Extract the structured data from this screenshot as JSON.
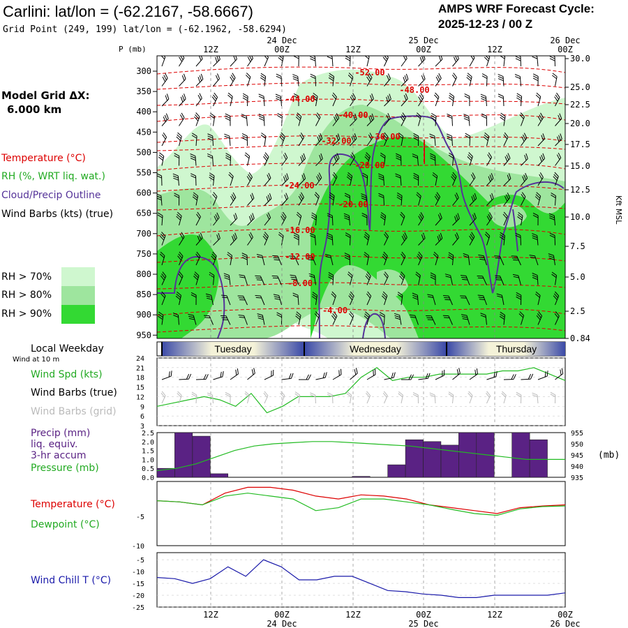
{
  "header": {
    "title": "Carlini:  lat/lon = (-62.2167, -58.6667)",
    "grid_point": "Grid Point (249, 199) lat/lon = (-62.1962, -58.6294)",
    "cycle_line1": "AMPS WRF Forecast Cycle:",
    "cycle_line2": "2025-12-23 / 00  Z"
  },
  "side_labels": {
    "model_grid_1": "Model Grid ΔX:",
    "model_grid_2": "6.000 km",
    "temperature": "Temperature (°C)",
    "rh": "RH (%, WRT liq. wat.)",
    "cloud": "Cloud/Precip Outline",
    "wind_barbs": "Wind Barbs (kts) (true)",
    "rh70": "RH > 70%",
    "rh80": "RH > 80%",
    "rh90": "RH > 90%",
    "local_weekday": "Local Weekday",
    "wind_10m": "Wind at 10 m",
    "wind_spd": "Wind Spd (kts)",
    "barbs_true": "Wind Barbs (true)",
    "barbs_grid": "Wind Barbs (grid)",
    "precip1": "Precip (mm)",
    "precip2": "liq. equiv.",
    "precip3": "3-hr accum",
    "pressure": "Pressure (mb)",
    "temp2": "Temperature (°C)",
    "dewpoint": "Dewpoint (°C)",
    "windchill": "Wind Chill T (°C)",
    "mb_unit": "(mb)",
    "kft": "Kft MSL",
    "p_mb": "P (mb)"
  },
  "colors": {
    "rh70": "#cff7cf",
    "rh80": "#9ee59e",
    "rh90": "#33d933",
    "temperature": "#dd0000",
    "cloud": "#553399",
    "windspd": "#22bb22",
    "precip": "#5a2284",
    "windchill": "#1a1aaa",
    "grid_barb": "#bbbbbb"
  },
  "time_axis": {
    "top_dates": [
      "24 Dec",
      "25 Dec",
      "26 Dec"
    ],
    "top_hours": [
      "12Z",
      "00Z",
      "12Z",
      "00Z",
      "12Z",
      "00Z"
    ],
    "bottom_hours": [
      "12Z",
      "00Z",
      "12Z",
      "00Z",
      "12Z",
      "00Z"
    ],
    "bottom_dates": [
      "24 Dec",
      "25 Dec",
      "26 Dec"
    ],
    "weekdays": [
      "Tuesday",
      "Wednesday",
      "Thursday"
    ]
  },
  "chart_data": [
    {
      "type": "heatmap",
      "name": "cross-section",
      "y_ticks": [
        "300",
        "350",
        "400",
        "450",
        "500",
        "550",
        "600",
        "650",
        "700",
        "750",
        "800",
        "850",
        "900",
        "950"
      ],
      "right_ticks": [
        "30.0",
        "25.0",
        "22.5",
        "20.0",
        "17.5",
        "15.0",
        "12.5",
        "10.0",
        "7.5",
        "5.0",
        "2.5",
        "0.84"
      ],
      "temp_labels": [
        "-52.00",
        "-48.00",
        "-44.00",
        "-40.00",
        "-36.00",
        "-32.00",
        "-28.00",
        "-24.00",
        "-20.00",
        "-16.00",
        "-12.00",
        "-8.00",
        "-4.00"
      ]
    },
    {
      "type": "line",
      "name": "wind-speed",
      "y_ticks": [
        "24",
        "21",
        "18",
        "15",
        "12",
        "9",
        "6",
        "3"
      ],
      "ylim": [
        3,
        24
      ],
      "values": [
        9,
        10,
        11,
        12,
        11,
        9,
        13,
        7,
        9,
        12,
        12,
        12,
        13,
        18,
        21,
        17,
        18,
        18,
        19,
        19,
        19,
        19,
        20,
        20,
        21,
        19,
        17
      ]
    },
    {
      "type": "bar",
      "name": "precip-pressure",
      "y_ticks": [
        "2.5",
        "2.0",
        "1.5",
        "1.0",
        "0.5",
        "0.0"
      ],
      "right_ticks": [
        "955",
        "950",
        "945",
        "940",
        "935"
      ],
      "ylim": [
        0,
        2.5
      ],
      "precip": [
        0.5,
        2.5,
        2.3,
        0.2,
        0,
        0,
        0,
        0,
        0,
        0,
        0,
        0.05,
        0,
        0.7,
        2.1,
        2.0,
        1.8,
        2.5,
        2.5,
        0,
        2.5,
        2.1,
        0
      ],
      "pressure_ylim": [
        935,
        955
      ],
      "pressure": [
        938,
        939,
        941,
        944,
        947,
        949,
        950,
        950.5,
        951,
        951,
        950.5,
        950,
        949.5,
        949,
        948,
        947,
        946,
        945,
        944,
        943,
        943,
        943
      ]
    },
    {
      "type": "line",
      "name": "temperature-dewpoint",
      "y_ticks": [
        "-5",
        "-10"
      ],
      "ylim": [
        -10,
        1
      ],
      "series": [
        {
          "name": "Temperature",
          "values": [
            -2.3,
            -2.5,
            -3,
            -1,
            0,
            0,
            -0.5,
            -1.5,
            -2,
            -1.3,
            -1.5,
            -2,
            -3,
            -3.5,
            -4,
            -4.5,
            -3.5,
            -3.2,
            -3
          ]
        },
        {
          "name": "Dewpoint",
          "values": [
            -2.3,
            -2.5,
            -3,
            -1.5,
            -1,
            -1.5,
            -2,
            -4,
            -3.5,
            -2,
            -2,
            -2.5,
            -3,
            -3.8,
            -4.5,
            -4.8,
            -3.7,
            -3.3,
            -3.2
          ]
        }
      ]
    },
    {
      "type": "line",
      "name": "wind-chill",
      "y_ticks": [
        "-5",
        "-10",
        "-15",
        "-20",
        "-25"
      ],
      "ylim": [
        -25,
        -2
      ],
      "values": [
        -12.5,
        -13,
        -15,
        -13,
        -8,
        -12,
        -5,
        -8,
        -13.5,
        -13.5,
        -12,
        -12,
        -15,
        -18,
        -18.5,
        -19.5,
        -20,
        -21,
        -21,
        -20,
        -20,
        -20,
        -20,
        -19
      ]
    }
  ]
}
